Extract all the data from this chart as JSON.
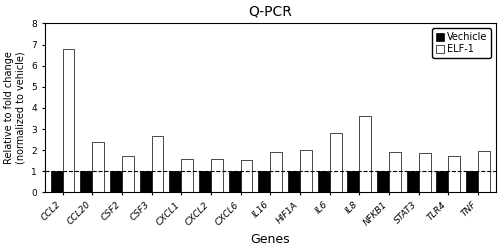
{
  "title": "Q-PCR",
  "xlabel": "Genes",
  "ylabel": "Relative to fold change\n(normalized to vehicle)",
  "genes": [
    "CCL2",
    "CCL20",
    "CSF2",
    "CSF3",
    "CXCL1",
    "CXCL2",
    "CXCL6",
    "IL16",
    "HIF1A",
    "IL6",
    "IL8",
    "NFKB1",
    "STAT3",
    "TLR4",
    "TNF"
  ],
  "vehicle_values": [
    1.0,
    1.0,
    1.0,
    1.0,
    1.0,
    1.0,
    1.0,
    1.0,
    1.0,
    1.0,
    1.0,
    1.0,
    1.0,
    1.0,
    1.0
  ],
  "elf1_values": [
    6.8,
    2.4,
    1.7,
    2.65,
    1.6,
    1.6,
    1.55,
    1.9,
    2.0,
    2.8,
    3.6,
    1.9,
    1.85,
    1.7,
    1.95
  ],
  "vehicle_color": "#000000",
  "elf1_color": "#ffffff",
  "elf1_edgecolor": "#000000",
  "ylim": [
    0,
    8
  ],
  "yticks": [
    0,
    1,
    2,
    3,
    4,
    5,
    6,
    7,
    8
  ],
  "hline_y": 1.0,
  "bar_width": 0.4,
  "legend_labels": [
    "Vechicle",
    "ELF-1"
  ],
  "figsize": [
    5.0,
    2.5
  ],
  "dpi": 100,
  "title_fontsize": 10,
  "ylabel_fontsize": 7,
  "xlabel_fontsize": 9,
  "tick_fontsize": 6.5,
  "legend_fontsize": 7
}
